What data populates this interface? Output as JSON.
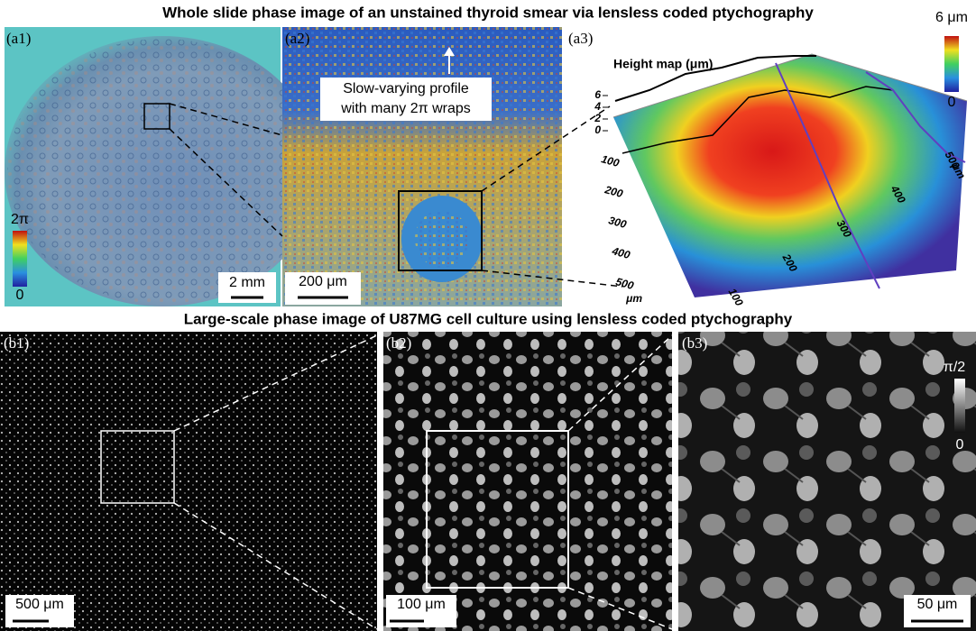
{
  "row_a": {
    "title": "Whole slide phase image of an unstained thyroid smear via lensless coded ptychography",
    "a1": {
      "label": "(a1)",
      "scale_bar": "2 mm",
      "colorbar_max": "2π",
      "colorbar_min": "0"
    },
    "a2": {
      "label": "(a2)",
      "scale_bar": "200 μm",
      "annotation": [
        "Slow-varying profile",
        "with many 2π wraps"
      ]
    },
    "a3": {
      "label": "(a3)",
      "height_map_label": "Height map (μm)",
      "colorbar_max": "6 μm",
      "colorbar_min": "0",
      "z_ticks": [
        0,
        2,
        4,
        6
      ],
      "y_ticks": [
        100,
        200,
        300,
        400,
        500
      ],
      "y_unit": "μm",
      "x_ticks": [
        100,
        200,
        300,
        400,
        500
      ],
      "x_unit": "μm"
    }
  },
  "row_b": {
    "title": "Large-scale phase image of U87MG cell culture using lensless coded ptychography",
    "b1": {
      "label": "(b1)",
      "scale_bar": "500 μm"
    },
    "b2": {
      "label": "(b2)",
      "scale_bar": "100 μm"
    },
    "b3": {
      "label": "(b3)",
      "scale_bar": "50 μm",
      "colorbar_max": "π/2",
      "colorbar_min": "0"
    }
  }
}
